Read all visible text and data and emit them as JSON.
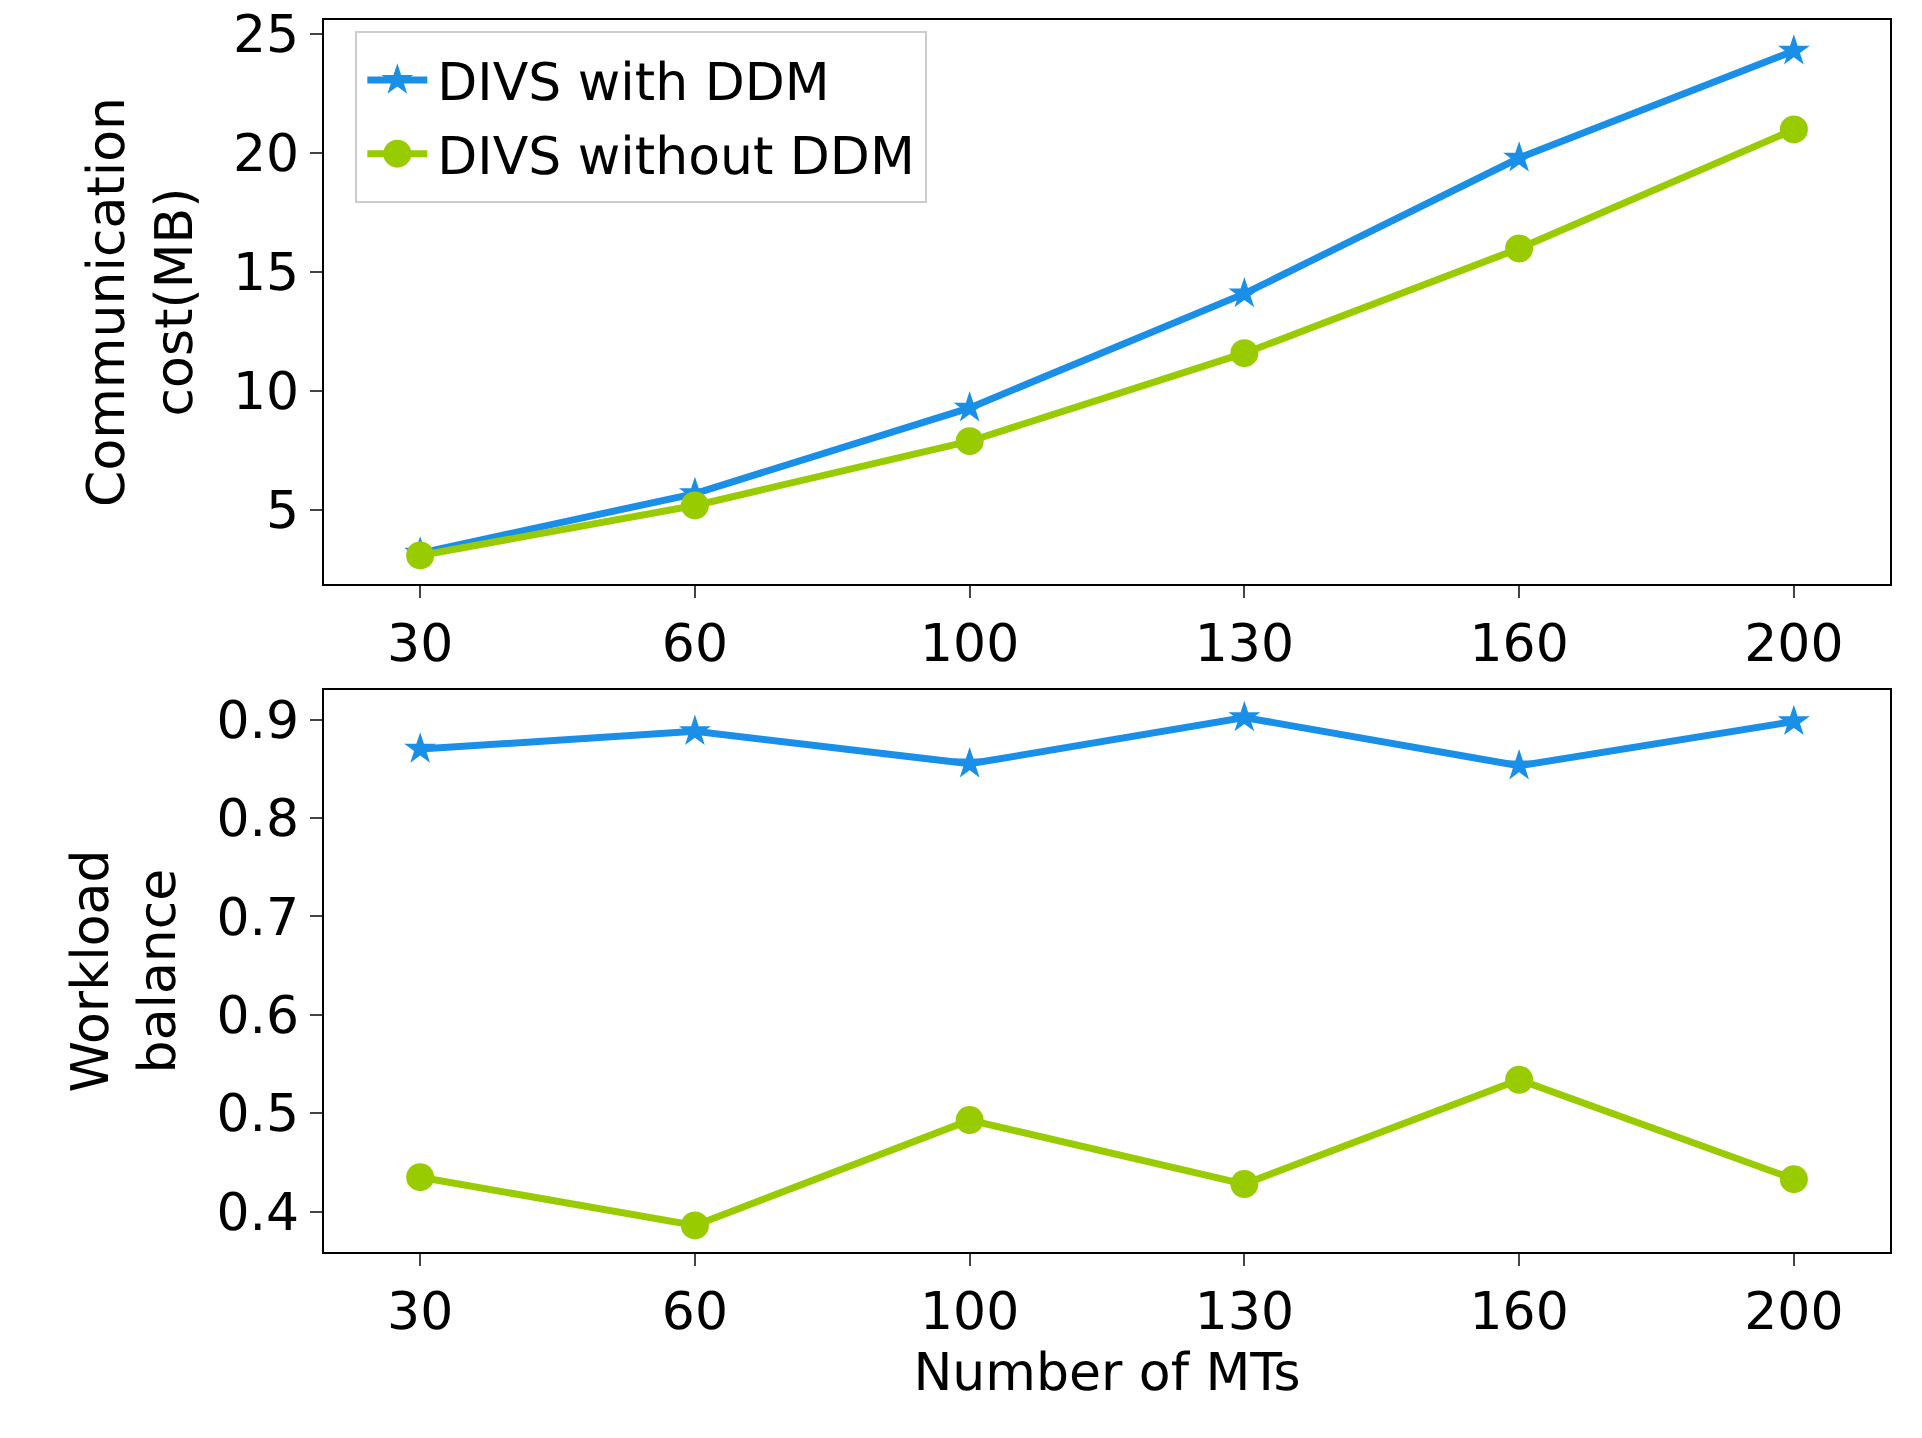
{
  "chart_data": [
    {
      "type": "line",
      "categories": [
        "30",
        "60",
        "100",
        "130",
        "160",
        "200"
      ],
      "ylabel": "Communication cost(MB)",
      "ylim": [
        1.9,
        25.6
      ],
      "yticks": [
        5,
        10,
        15,
        20,
        25
      ],
      "legend": "top left",
      "grid": false,
      "line_style": "solid",
      "series": [
        {
          "name": "DIVS with DDM",
          "color": "#1a8fe8",
          "marker": "star",
          "values": [
            3.2,
            5.7,
            9.3,
            14.1,
            19.8,
            24.3
          ]
        },
        {
          "name": "DIVS without DDM",
          "color": "#99cc00",
          "marker": "circle",
          "values": [
            3.1,
            5.2,
            7.9,
            11.6,
            16.0,
            21.0
          ]
        }
      ]
    },
    {
      "type": "line",
      "categories": [
        "30",
        "60",
        "100",
        "130",
        "160",
        "200"
      ],
      "xlabel": "Number of MTs",
      "ylabel": "Workload balance",
      "ylim": [
        0.359,
        0.93
      ],
      "yticks": [
        0.4,
        0.5,
        0.6,
        0.7,
        0.8,
        0.9
      ],
      "legend": false,
      "grid": false,
      "line_style": "solid",
      "series": [
        {
          "color": "#1a8fe8",
          "marker": "star",
          "values": [
            0.87,
            0.888,
            0.855,
            0.902,
            0.853,
            0.898
          ]
        },
        {
          "color": "#99cc00",
          "marker": "circle",
          "values": [
            0.435,
            0.386,
            0.493,
            0.428,
            0.534,
            0.433
          ]
        }
      ]
    }
  ]
}
